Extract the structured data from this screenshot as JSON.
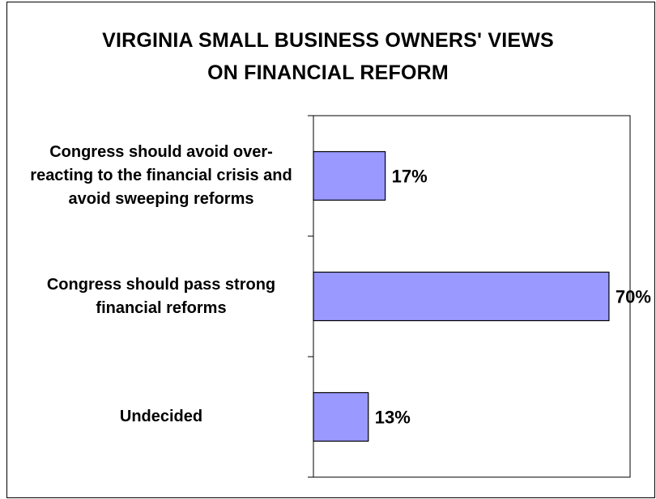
{
  "chart_data": {
    "type": "bar",
    "orientation": "horizontal",
    "title": "VIRGINIA SMALL BUSINESS OWNERS' VIEWS ON FINANCIAL REFORM",
    "title_lines": [
      "VIRGINIA SMALL BUSINESS OWNERS' VIEWS",
      "ON FINANCIAL REFORM"
    ],
    "categories": [
      "Congress should avoid over-reacting to the financial crisis and avoid sweeping reforms",
      "Congress should pass strong financial reforms",
      "Undecided"
    ],
    "category_label_lines": [
      [
        "Congress should avoid over-",
        "reacting to the financial crisis and",
        "avoid sweeping reforms"
      ],
      [
        "Congress should pass strong",
        "financial reforms"
      ],
      [
        "Undecided"
      ]
    ],
    "values": [
      17,
      70,
      13
    ],
    "data_labels": [
      "17%",
      "70%",
      "13%"
    ],
    "unit": "%",
    "xlim": [
      0,
      75
    ],
    "grid": false,
    "legend": "none",
    "bar_color": "#9999ff",
    "bar_border_color": "#000000"
  }
}
